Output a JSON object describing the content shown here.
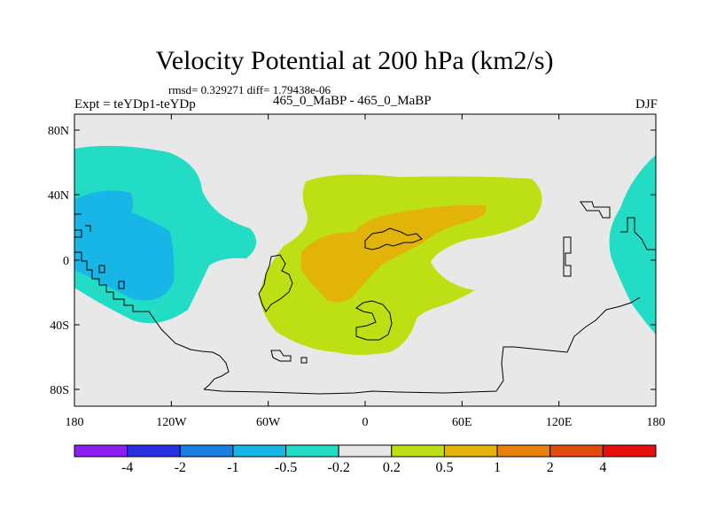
{
  "title": "Velocity Potential at 200 hPa (km2/s)",
  "stats_line": "rmsd= 0.329271 diff= 1.79438e-06",
  "left_label": "Expt = teYDp1-teYDp",
  "center_label": "465_0_MaBP - 465_0_MaBP",
  "right_label": "DJF",
  "lat_ticks": [
    "80N",
    "40N",
    "0",
    "40S",
    "80S"
  ],
  "lon_ticks": [
    "180",
    "120W",
    "60W",
    "0",
    "60E",
    "120E",
    "180"
  ],
  "colorbar": {
    "labels": [
      "-4",
      "-2",
      "-1",
      "-0.5",
      "-0.2",
      "0.2",
      "0.5",
      "1",
      "2",
      "4"
    ],
    "colors": [
      "#8a1ff0",
      "#2b2fe3",
      "#1a7fe0",
      "#18b6e6",
      "#22dcc6",
      "#e8e8e8",
      "#bde014",
      "#e2b40a",
      "#e8800c",
      "#e24a10",
      "#e80e0e"
    ]
  },
  "map_colors": {
    "background": "#e8e8e8",
    "neg_weak": "#22dcc6",
    "neg_mid": "#18b6e6",
    "pos_weak": "#bde014",
    "pos_mid": "#e2b40a"
  }
}
